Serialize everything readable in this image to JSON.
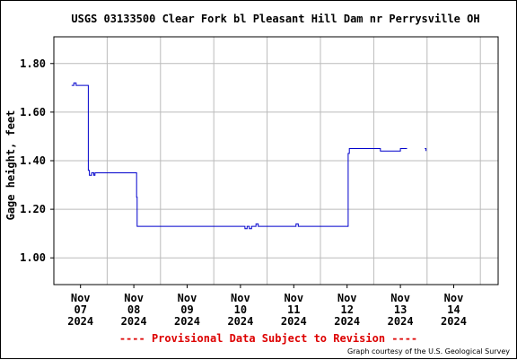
{
  "chart_data": {
    "type": "line",
    "title": "USGS 03133500 Clear Fork bl Pleasant Hill Dam nr Perrysville OH",
    "ylabel": "Gage height, feet",
    "xlabel": "",
    "ylim": [
      0.89,
      1.91
    ],
    "yticks": [
      "1.00",
      "1.20",
      "1.40",
      "1.60",
      "1.80"
    ],
    "x_date_ticks": [
      [
        "Nov",
        "07",
        "2024"
      ],
      [
        "Nov",
        "08",
        "2024"
      ],
      [
        "Nov",
        "09",
        "2024"
      ],
      [
        "Nov",
        "10",
        "2024"
      ],
      [
        "Nov",
        "11",
        "2024"
      ],
      [
        "Nov",
        "12",
        "2024"
      ],
      [
        "Nov",
        "13",
        "2024"
      ],
      [
        "Nov",
        "14",
        "2024"
      ]
    ],
    "grid": true,
    "line_color": "#0000cc",
    "series": [
      {
        "x": [
          "2024-11-06 20:00",
          "2024-11-06 21:00",
          "2024-11-06 22:00",
          "2024-11-07 00:00",
          "2024-11-07 03:00",
          "2024-11-07 03:30",
          "2024-11-07 04:00",
          "2024-11-07 05:00",
          "2024-11-07 06:00",
          "2024-11-07 06:30",
          "2024-11-07 07:00",
          "2024-11-07 08:00",
          "2024-11-07 10:00",
          "2024-11-08 01:00",
          "2024-11-08 01:15",
          "2024-11-08 01:30",
          "2024-11-08 01:45",
          "2024-11-09 00:00",
          "2024-11-10 00:00",
          "2024-11-10 02:00",
          "2024-11-10 03:00",
          "2024-11-10 04:00",
          "2024-11-10 05:00",
          "2024-11-10 07:00",
          "2024-11-10 08:00",
          "2024-11-10 09:00",
          "2024-11-10 10:00",
          "2024-11-11 00:00",
          "2024-11-11 01:00",
          "2024-11-11 02:00",
          "2024-11-11 05:00",
          "2024-11-11 06:00",
          "2024-11-12 00:00",
          "2024-11-12 00:30",
          "2024-11-12 01:00",
          "2024-11-12 02:00",
          "2024-11-12 12:00",
          "2024-11-12 15:00",
          "2024-11-13 00:00",
          "2024-11-13 03:00"
        ],
        "y": [
          1.71,
          1.72,
          1.71,
          1.71,
          1.71,
          1.36,
          1.34,
          1.35,
          1.34,
          1.35,
          1.35,
          1.35,
          1.35,
          1.35,
          1.25,
          1.13,
          1.13,
          1.13,
          1.13,
          1.12,
          1.13,
          1.12,
          1.13,
          1.14,
          1.13,
          1.13,
          1.13,
          1.13,
          1.14,
          1.13,
          1.13,
          1.13,
          1.13,
          1.43,
          1.45,
          1.45,
          1.45,
          1.44,
          1.45,
          1.45
        ]
      },
      {
        "x": [
          "2024-11-13 11:00",
          "2024-11-13 11:30"
        ],
        "y": [
          1.45,
          1.44
        ]
      }
    ]
  },
  "footer": {
    "provisional": "---- Provisional Data Subject to Revision ----",
    "credit": "Graph courtesy of the U.S. Geological Survey"
  }
}
